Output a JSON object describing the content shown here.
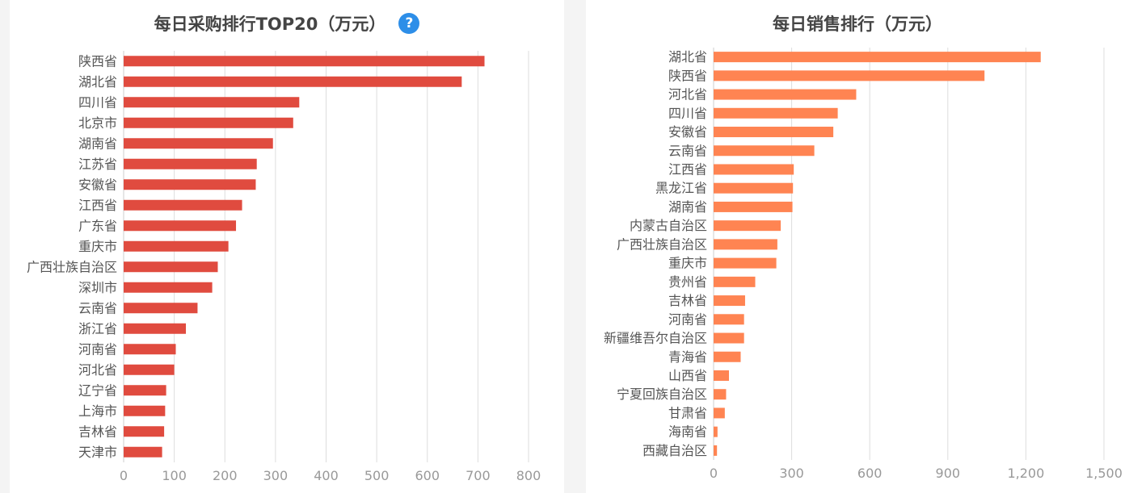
{
  "chart_data": [
    {
      "type": "bar",
      "orientation": "horizontal",
      "title": "每日采购排行TOP20（万元）",
      "title_icon": "help-icon",
      "help_icon_glyph": "?",
      "categories": [
        "陕西省",
        "湖北省",
        "四川省",
        "北京市",
        "湖南省",
        "江苏省",
        "安徽省",
        "江西省",
        "广东省",
        "重庆市",
        "广西壮族自治区",
        "深圳市",
        "云南省",
        "浙江省",
        "河南省",
        "河北省",
        "辽宁省",
        "上海市",
        "吉林省",
        "天津市"
      ],
      "values": [
        713,
        668,
        347,
        335,
        295,
        263,
        261,
        234,
        222,
        207,
        186,
        175,
        146,
        123,
        103,
        100,
        84,
        82,
        80,
        76
      ],
      "xlim": [
        0,
        800
      ],
      "xticks": [
        0,
        100,
        200,
        300,
        400,
        500,
        600,
        700,
        800
      ],
      "xtick_labels": [
        "0",
        "100",
        "200",
        "300",
        "400",
        "500",
        "600",
        "700",
        "800"
      ],
      "grid": true,
      "bar_color": "#e04b3f"
    },
    {
      "type": "bar",
      "orientation": "horizontal",
      "title": "每日销售排行（万元）",
      "categories": [
        "湖北省",
        "陕西省",
        "河北省",
        "四川省",
        "安徽省",
        "云南省",
        "江西省",
        "黑龙江省",
        "湖南省",
        "内蒙古自治区",
        "广西壮族自治区",
        "重庆市",
        "贵州省",
        "吉林省",
        "河南省",
        "新疆维吾尔自治区",
        "青海省",
        "山西省",
        "宁夏回族自治区",
        "甘肃省",
        "海南省",
        "西藏自治区"
      ],
      "values": [
        1257,
        1041,
        548,
        477,
        460,
        387,
        308,
        305,
        303,
        258,
        245,
        241,
        160,
        121,
        117,
        117,
        104,
        59,
        48,
        43,
        15,
        13
      ],
      "xlim": [
        0,
        1500
      ],
      "xticks": [
        0,
        300,
        600,
        900,
        1200,
        1500
      ],
      "xtick_labels": [
        "0",
        "300",
        "600",
        "900",
        "1,200",
        "1,500"
      ],
      "grid": true,
      "bar_color": "#ff8452"
    }
  ]
}
